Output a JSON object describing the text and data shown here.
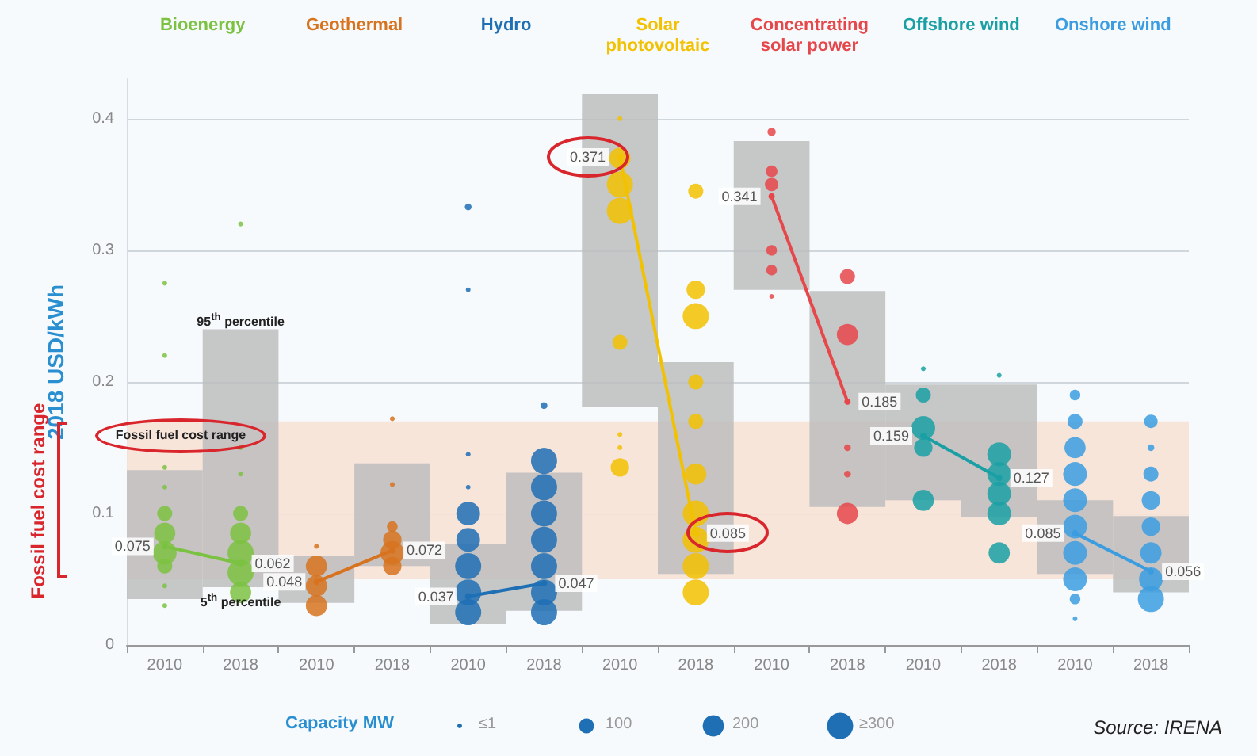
{
  "chart_data": {
    "type": "bubble",
    "ylabel": "2018 USD/kWh",
    "legend_title": "Capacity MW",
    "size_legend": [
      {
        "value": 10,
        "label": "≤1"
      },
      100,
      200,
      {
        "value": 300,
        "label": "≥300"
      }
    ],
    "categories": [
      "2010",
      "2018",
      "2010",
      "2018",
      "2010",
      "2018",
      "2010",
      "2018",
      "2010",
      "2018",
      "2010",
      "2018",
      "2010",
      "2018"
    ],
    "ylim": [
      0,
      0.43
    ],
    "yticks": [
      0,
      0.1,
      0.2,
      0.3,
      0.4
    ],
    "grid": "y",
    "bands": [
      {
        "axis": "y",
        "from": 0.05,
        "to": 0.17,
        "label": "Fossil fuel cost range",
        "color": "#f6e2d6"
      }
    ],
    "annotations": [
      "Fossil fuel cost range",
      {
        "text": "95$^{th}$ percentile",
        "x": "2018",
        "y": 0.24
      },
      {
        "text": "5$^{th}$ percentile",
        "x": "2018",
        "y": 0.044
      },
      "Source: IRENA"
    ],
    "series": [
      {
        "type": "bar",
        "color": "#bdbdbd",
        "values": [
          0.098,
          0.196,
          0.036,
          0.078,
          0.061,
          0.105,
          0.238,
          0.161,
          0.113,
          0.164,
          0.088,
          0.101,
          0.056,
          0.058
        ],
        "base": [
          0.035,
          0.044,
          0.032,
          0.06,
          0.016,
          0.026,
          0.181,
          0.054,
          0.27,
          0.105,
          0.11,
          0.097,
          0.054,
          0.04
        ]
      },
      {
        "values": [
          0.275,
          0.32,
          0.075,
          0.172,
          0.333,
          0.182,
          0.4,
          0.345,
          0.39,
          0.28,
          0.21,
          0.205,
          0.19,
          0.17
        ],
        "sizes": [
          10,
          10,
          10,
          10,
          20,
          20,
          10,
          100,
          30,
          100,
          10,
          10,
          50,
          80
        ],
        "colors": [
          "#7cc242",
          "#7cc242",
          "#d7731f",
          "#d7731f",
          "#1f6fb5",
          "#1f6fb5",
          "#f2c100",
          "#f2c100",
          "#e6474a",
          "#e6474a",
          "#1aa0a4",
          "#1aa0a4",
          "#3b9de0",
          "#3b9de0"
        ]
      },
      {
        "values": [
          0.22,
          0.15,
          0.06,
          0.122,
          0.27,
          0.14,
          0.37,
          0.27,
          0.36,
          0.236,
          0.19,
          0.145,
          0.17,
          0.15
        ],
        "sizes": [
          10,
          10,
          200,
          10,
          10,
          300,
          200,
          150,
          60,
          200,
          100,
          250,
          100,
          20
        ],
        "colors": [
          "#7cc242",
          "#7cc242",
          "#d7731f",
          "#d7731f",
          "#1f6fb5",
          "#1f6fb5",
          "#f2c100",
          "#f2c100",
          "#e6474a",
          "#e6474a",
          "#1aa0a4",
          "#1aa0a4",
          "#3b9de0",
          "#3b9de0"
        ]
      },
      {
        "values": [
          0.135,
          0.13,
          0.045,
          0.09,
          0.145,
          0.12,
          0.35,
          0.25,
          0.35,
          0.15,
          0.165,
          0.13,
          0.15,
          0.13
        ],
        "sizes": [
          10,
          10,
          200,
          50,
          10,
          300,
          300,
          300,
          80,
          20,
          250,
          250,
          200,
          100
        ],
        "colors": [
          "#7cc242",
          "#7cc242",
          "#d7731f",
          "#d7731f",
          "#1f6fb5",
          "#1f6fb5",
          "#f2c100",
          "#f2c100",
          "#e6474a",
          "#e6474a",
          "#1aa0a4",
          "#1aa0a4",
          "#3b9de0",
          "#3b9de0"
        ]
      },
      {
        "values": [
          0.12,
          0.1,
          0.03,
          0.08,
          0.12,
          0.1,
          0.33,
          0.2,
          0.3,
          0.13,
          0.15,
          0.115,
          0.13,
          0.11
        ],
        "sizes": [
          10,
          100,
          200,
          150,
          10,
          300,
          300,
          100,
          50,
          20,
          150,
          250,
          250,
          150
        ],
        "colors": [
          "#7cc242",
          "#7cc242",
          "#d7731f",
          "#d7731f",
          "#1f6fb5",
          "#1f6fb5",
          "#f2c100",
          "#f2c100",
          "#e6474a",
          "#e6474a",
          "#1aa0a4",
          "#1aa0a4",
          "#3b9de0",
          "#3b9de0"
        ]
      },
      {
        "values": [
          0.1,
          0.085,
          null,
          0.07,
          0.1,
          0.08,
          0.23,
          0.17,
          0.285,
          0.1,
          0.11,
          0.1,
          0.11,
          0.09
        ],
        "sizes": [
          100,
          200,
          null,
          250,
          250,
          300,
          100,
          100,
          50,
          200,
          200,
          250,
          250,
          150
        ],
        "colors": [
          "#7cc242",
          "#7cc242",
          "#d7731f",
          "#d7731f",
          "#1f6fb5",
          "#1f6fb5",
          "#f2c100",
          "#f2c100",
          "#e6474a",
          "#e6474a",
          "#1aa0a4",
          "#1aa0a4",
          "#3b9de0",
          "#3b9de0"
        ]
      },
      {
        "values": [
          0.085,
          0.07,
          null,
          0.06,
          0.08,
          0.06,
          0.16,
          0.13,
          0.265,
          null,
          null,
          0.07,
          0.09,
          0.07
        ],
        "sizes": [
          200,
          300,
          null,
          150,
          250,
          300,
          10,
          200,
          10,
          null,
          null,
          200,
          250,
          200
        ],
        "colors": [
          "#7cc242",
          "#7cc242",
          "#d7731f",
          "#d7731f",
          "#1f6fb5",
          "#1f6fb5",
          "#f2c100",
          "#f2c100",
          "#e6474a",
          "#e6474a",
          "#1aa0a4",
          "#1aa0a4",
          "#3b9de0",
          "#3b9de0"
        ]
      },
      {
        "values": [
          0.07,
          0.055,
          null,
          null,
          0.06,
          0.04,
          0.15,
          0.1,
          null,
          null,
          null,
          null,
          0.07,
          0.05
        ],
        "sizes": [
          250,
          300,
          null,
          null,
          300,
          300,
          10,
          300,
          null,
          null,
          null,
          null,
          250,
          250
        ],
        "colors": [
          "#7cc242",
          "#7cc242",
          "#d7731f",
          "#d7731f",
          "#1f6fb5",
          "#1f6fb5",
          "#f2c100",
          "#f2c100",
          "#e6474a",
          "#e6474a",
          "#1aa0a4",
          "#1aa0a4",
          "#3b9de0",
          "#3b9de0"
        ]
      },
      {
        "values": [
          0.06,
          0.04,
          null,
          null,
          0.04,
          0.025,
          0.135,
          0.08,
          null,
          null,
          null,
          null,
          0.05,
          0.035
        ],
        "sizes": [
          100,
          200,
          null,
          null,
          300,
          300,
          150,
          300,
          null,
          null,
          null,
          null,
          250,
          300
        ],
        "colors": [
          "#7cc242",
          "#7cc242",
          "#d7731f",
          "#d7731f",
          "#1f6fb5",
          "#1f6fb5",
          "#f2c100",
          "#f2c100",
          "#e6474a",
          "#e6474a",
          "#1aa0a4",
          "#1aa0a4",
          "#3b9de0",
          "#3b9de0"
        ]
      },
      {
        "values": [
          0.045,
          null,
          null,
          null,
          0.025,
          null,
          null,
          0.06,
          null,
          null,
          null,
          null,
          0.035,
          null
        ],
        "sizes": [
          10,
          null,
          null,
          null,
          300,
          null,
          null,
          300,
          null,
          null,
          null,
          null,
          50,
          null
        ],
        "colors": [
          "#7cc242",
          "#7cc242",
          "#d7731f",
          "#d7731f",
          "#1f6fb5",
          "#1f6fb5",
          "#f2c100",
          "#f2c100",
          "#e6474a",
          "#e6474a",
          "#1aa0a4",
          "#1aa0a4",
          "#3b9de0",
          "#3b9de0"
        ]
      },
      {
        "values": [
          0.03,
          null,
          null,
          null,
          null,
          null,
          null,
          0.04,
          null,
          null,
          null,
          null,
          0.02,
          null
        ],
        "sizes": [
          10,
          null,
          null,
          null,
          null,
          null,
          null,
          300,
          null,
          null,
          null,
          null,
          10,
          null
        ],
        "colors": [
          "#7cc242",
          "#7cc242",
          "#d7731f",
          "#d7731f",
          "#1f6fb5",
          "#1f6fb5",
          "#f2c100",
          "#f2c100",
          "#e6474a",
          "#e6474a",
          "#1aa0a4",
          "#1aa0a4",
          "#3b9de0",
          "#3b9de0"
        ]
      },
      {
        "type": "line",
        "name": "Bioenergy",
        "color": "#7cc242",
        "marker": "circle",
        "values": [
          0.075,
          0.062,
          null,
          null,
          null,
          null,
          null,
          null,
          null,
          null,
          null,
          null,
          null,
          null
        ],
        "value_labels": [
          "0.075",
          "0.062",
          null,
          null,
          null,
          null,
          null,
          null,
          null,
          null,
          null,
          null,
          null,
          null
        ]
      },
      {
        "type": "line",
        "name": "Geothermal",
        "color": "#d7731f",
        "marker": "circle",
        "values": [
          null,
          null,
          0.048,
          0.072,
          null,
          null,
          null,
          null,
          null,
          null,
          null,
          null,
          null,
          null
        ],
        "value_labels": [
          null,
          null,
          "0.048",
          "0.072",
          null,
          null,
          null,
          null,
          null,
          null,
          null,
          null,
          null,
          null
        ]
      },
      {
        "type": "line",
        "name": "Hydro",
        "color": "#1f6fb5",
        "marker": "circle",
        "values": [
          null,
          null,
          null,
          null,
          0.037,
          0.047,
          null,
          null,
          null,
          null,
          null,
          null,
          null,
          null
        ],
        "value_labels": [
          null,
          null,
          null,
          null,
          "0.037",
          "0.047",
          null,
          null,
          null,
          null,
          null,
          null,
          null,
          null
        ]
      },
      {
        "type": "line",
        "name": "Solar photovoltaic",
        "color": "#f2c100",
        "marker": "circle",
        "values": [
          null,
          null,
          null,
          null,
          null,
          null,
          0.371,
          0.085,
          null,
          null,
          null,
          null,
          null,
          null
        ],
        "value_labels": [
          null,
          null,
          null,
          null,
          null,
          null,
          "0.371",
          "0.085",
          null,
          null,
          null,
          null,
          null,
          null
        ]
      },
      {
        "type": "line",
        "name": "Concentrating solar power",
        "color": "#e6474a",
        "marker": "circle",
        "values": [
          null,
          null,
          null,
          null,
          null,
          null,
          null,
          null,
          0.341,
          0.185,
          null,
          null,
          null,
          null
        ],
        "value_labels": [
          null,
          null,
          null,
          null,
          null,
          null,
          null,
          null,
          "0.341",
          "0.185",
          null,
          null,
          null,
          null
        ]
      },
      {
        "type": "line",
        "name": "Offshore wind",
        "color": "#1aa0a4",
        "marker": "circle",
        "values": [
          null,
          null,
          null,
          null,
          null,
          null,
          null,
          null,
          null,
          null,
          0.159,
          0.127,
          null,
          null
        ],
        "value_labels": [
          null,
          null,
          null,
          null,
          null,
          null,
          null,
          null,
          null,
          null,
          "0.159",
          "0.127",
          null,
          null
        ]
      },
      {
        "type": "line",
        "name": "Onshore wind",
        "color": "#3b9de0",
        "marker": "circle",
        "values": [
          null,
          null,
          null,
          null,
          null,
          null,
          null,
          null,
          null,
          null,
          null,
          null,
          0.085,
          0.056
        ],
        "value_labels": [
          null,
          null,
          null,
          null,
          null,
          null,
          null,
          null,
          null,
          null,
          null,
          null,
          "0.085",
          "0.056"
        ]
      }
    ]
  }
}
